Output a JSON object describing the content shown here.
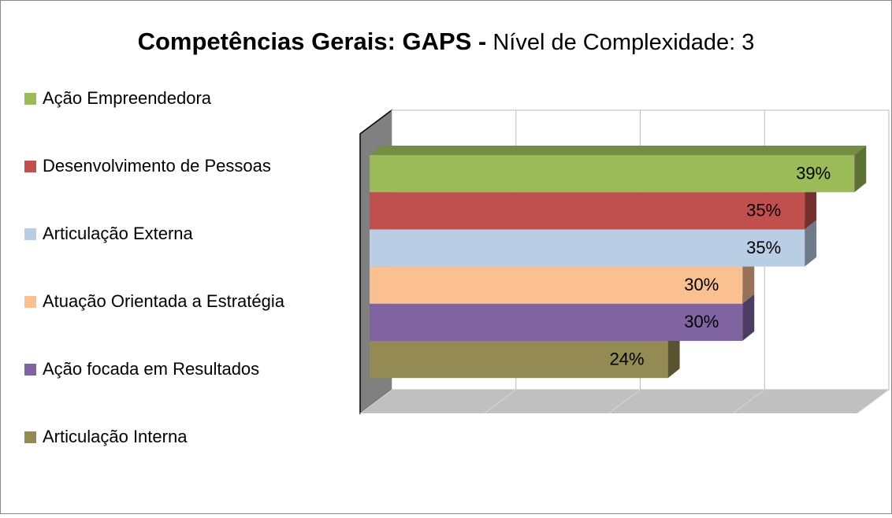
{
  "chart_data": {
    "type": "bar3d_horizontal",
    "title": "Competências Gerais: GAPS -",
    "subtitle": "Nível de Complexidade: 3",
    "categories": [
      "Ação Empreendedora",
      "Desenvolvimento de Pessoas",
      "Articulação Externa",
      "Atuação Orientada a Estratégia",
      "Ação focada em Resultados",
      "Articulação Interna"
    ],
    "values": [
      39,
      35,
      35,
      30,
      30,
      24
    ],
    "value_labels": [
      "39%",
      "35%",
      "35%",
      "30%",
      "30%",
      "24%"
    ],
    "colors": [
      "#9bbb59",
      "#c0504d",
      "#b9cde5",
      "#fac090",
      "#8064a2",
      "#948a54"
    ],
    "xlim": [
      0,
      40
    ],
    "xticks": [
      0,
      10,
      20,
      30,
      40
    ],
    "grid": true,
    "legend": "left"
  }
}
